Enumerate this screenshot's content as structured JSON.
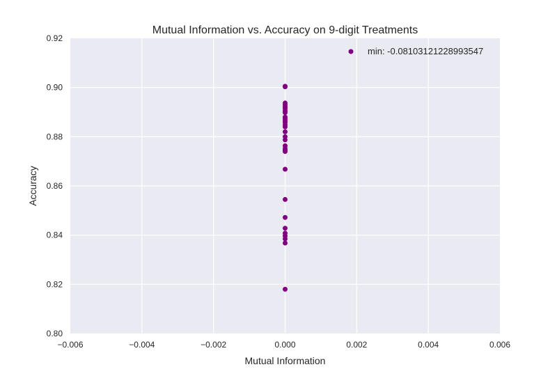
{
  "chart_data": {
    "type": "scatter",
    "title": "Mutual Information vs. Accuracy on 9-digit Treatments",
    "xlabel": "Mutual Information",
    "ylabel": "Accuracy",
    "xlim": [
      -0.006,
      0.006
    ],
    "ylim": [
      0.8,
      0.92
    ],
    "x_ticks": [
      "−0.006",
      "−0.004",
      "−0.002",
      "0.000",
      "0.002",
      "0.004",
      "0.006"
    ],
    "x_tick_values": [
      -0.006,
      -0.004,
      -0.002,
      0.0,
      0.002,
      0.004,
      0.006
    ],
    "y_ticks": [
      "0.80",
      "0.82",
      "0.84",
      "0.86",
      "0.88",
      "0.90",
      "0.92"
    ],
    "y_tick_values": [
      0.8,
      0.82,
      0.84,
      0.86,
      0.88,
      0.9,
      0.92
    ],
    "grid": true,
    "legend_position": "top-right",
    "series": [
      {
        "name": "min: -0.08103121228993547",
        "color": "#800080",
        "points": [
          {
            "x": 0.0,
            "y": 0.9005
          },
          {
            "x": 0.0,
            "y": 0.9003
          },
          {
            "x": 0.0,
            "y": 0.8937
          },
          {
            "x": 0.0,
            "y": 0.893
          },
          {
            "x": 0.0,
            "y": 0.8922
          },
          {
            "x": 0.0,
            "y": 0.8915
          },
          {
            "x": 0.0,
            "y": 0.8905
          },
          {
            "x": 0.0,
            "y": 0.8898
          },
          {
            "x": 0.0,
            "y": 0.888
          },
          {
            "x": 0.0,
            "y": 0.8873
          },
          {
            "x": 0.0,
            "y": 0.8865
          },
          {
            "x": 0.0,
            "y": 0.8858
          },
          {
            "x": 0.0,
            "y": 0.8848
          },
          {
            "x": 0.0,
            "y": 0.884
          },
          {
            "x": 0.0,
            "y": 0.882
          },
          {
            "x": 0.0,
            "y": 0.88
          },
          {
            "x": 0.0,
            "y": 0.8787
          },
          {
            "x": 0.0,
            "y": 0.8763
          },
          {
            "x": 0.0,
            "y": 0.8752
          },
          {
            "x": 0.0,
            "y": 0.8745
          },
          {
            "x": 0.0,
            "y": 0.874
          },
          {
            "x": 0.0,
            "y": 0.8668
          },
          {
            "x": 0.0,
            "y": 0.8545
          },
          {
            "x": 0.0,
            "y": 0.8472
          },
          {
            "x": 0.0,
            "y": 0.8428
          },
          {
            "x": 0.0,
            "y": 0.8408
          },
          {
            "x": 0.0,
            "y": 0.8397
          },
          {
            "x": 0.0,
            "y": 0.8385
          },
          {
            "x": 0.0,
            "y": 0.8368
          },
          {
            "x": 0.0,
            "y": 0.818
          }
        ]
      }
    ]
  }
}
